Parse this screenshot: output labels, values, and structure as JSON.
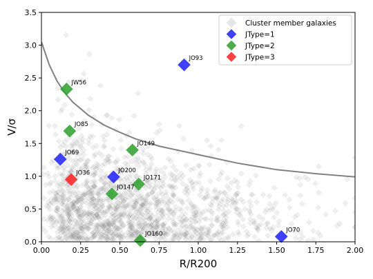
{
  "chart_data": {
    "type": "scatter",
    "title": "",
    "xlabel": "R/R200",
    "ylabel": "V/σ",
    "xlim": [
      0,
      2
    ],
    "ylim": [
      0,
      3.5
    ],
    "x_ticks": [
      "0.00",
      "0.25",
      "0.50",
      "0.75",
      "1.00",
      "1.25",
      "1.50",
      "1.75",
      "2.00"
    ],
    "y_ticks": [
      "0.0",
      "0.5",
      "1.0",
      "1.5",
      "2.0",
      "2.5",
      "3.0",
      "3.5"
    ],
    "grid": false,
    "legend_position": "top-right",
    "background_series": {
      "name": "Cluster member galaxies",
      "color": "#808080",
      "marker": "diamond",
      "description_points": "dense cloud of semi-transparent gray diamonds concentrated at low R/R200 and low V/sigma"
    },
    "series": [
      {
        "name": "JType=1",
        "color": "#1f1fff",
        "marker": "diamond",
        "points": [
          {
            "label": "JO93",
            "x": 0.91,
            "y": 2.7
          },
          {
            "label": "JO69",
            "x": 0.12,
            "y": 1.26
          },
          {
            "label": "JO200",
            "x": 0.46,
            "y": 0.99
          },
          {
            "label": "JO70",
            "x": 1.53,
            "y": 0.08
          }
        ]
      },
      {
        "name": "JType=2",
        "color": "#2ca02c",
        "marker": "diamond",
        "points": [
          {
            "label": "JW56",
            "x": 0.16,
            "y": 2.33
          },
          {
            "label": "JO85",
            "x": 0.18,
            "y": 1.69
          },
          {
            "label": "JO149",
            "x": 0.58,
            "y": 1.4
          },
          {
            "label": "JO171",
            "x": 0.62,
            "y": 0.88
          },
          {
            "label": "JO147",
            "x": 0.45,
            "y": 0.73
          },
          {
            "label": "JO160",
            "x": 0.63,
            "y": 0.02
          }
        ]
      },
      {
        "name": "JType=3",
        "color": "#ff2020",
        "marker": "diamond",
        "points": [
          {
            "label": "JO36",
            "x": 0.19,
            "y": 0.95
          }
        ]
      }
    ],
    "curve": {
      "color": "#808080",
      "points": [
        [
          0.0,
          3.05
        ],
        [
          0.05,
          2.7
        ],
        [
          0.1,
          2.45
        ],
        [
          0.15,
          2.27
        ],
        [
          0.2,
          2.13
        ],
        [
          0.3,
          1.93
        ],
        [
          0.4,
          1.78
        ],
        [
          0.5,
          1.67
        ],
        [
          0.6,
          1.57
        ],
        [
          0.75,
          1.46
        ],
        [
          1.0,
          1.33
        ],
        [
          1.25,
          1.2
        ],
        [
          1.5,
          1.1
        ],
        [
          1.75,
          1.04
        ],
        [
          2.0,
          0.99
        ]
      ]
    }
  }
}
